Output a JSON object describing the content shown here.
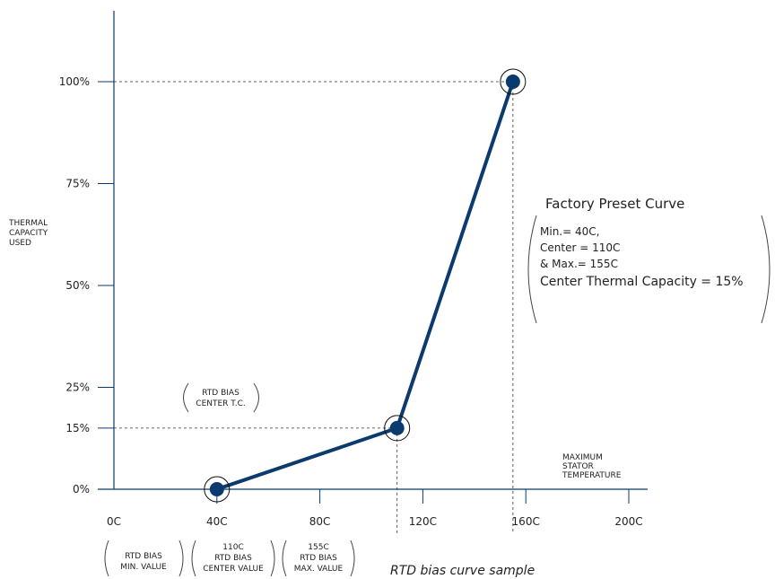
{
  "chart_data": {
    "type": "line",
    "caption": "RTD bias curve sample",
    "xlabel": [
      "MAXIMUM",
      "STATOR",
      "TEMPERATURE"
    ],
    "ylabel": [
      "THERMAL",
      "CAPACITY",
      "USED"
    ],
    "x_ticks": [
      "0C",
      "40C",
      "80C",
      "120C",
      "160C",
      "200C"
    ],
    "x_tick_values": [
      0,
      40,
      80,
      120,
      160,
      200
    ],
    "y_ticks": [
      "0%",
      "15%",
      "25%",
      "50%",
      "75%",
      "100%"
    ],
    "y_tick_values": [
      0,
      15,
      25,
      50,
      75,
      100
    ],
    "xlim": [
      0,
      210
    ],
    "ylim": [
      0,
      120
    ],
    "series": [
      {
        "x": [
          40,
          110,
          155
        ],
        "y": [
          0,
          15,
          100
        ]
      }
    ],
    "color": "#0a3a6e",
    "preset_note": {
      "title": "Factory Preset Curve",
      "lines": [
        "Min.= 40C,",
        "Center = 110C",
        "& Max.= 155C",
        "Center Thermal Capacity = 15%"
      ]
    },
    "center_tc_label": [
      "RTD BIAS",
      "CENTER T.C."
    ],
    "bias_labels": [
      {
        "lines": [
          "RTD BIAS",
          "MIN. VALUE"
        ]
      },
      {
        "lines": [
          "110C",
          "RTD BIAS",
          "CENTER VALUE"
        ]
      },
      {
        "lines": [
          "155C",
          "RTD BIAS",
          "MAX. VALUE"
        ]
      }
    ]
  }
}
